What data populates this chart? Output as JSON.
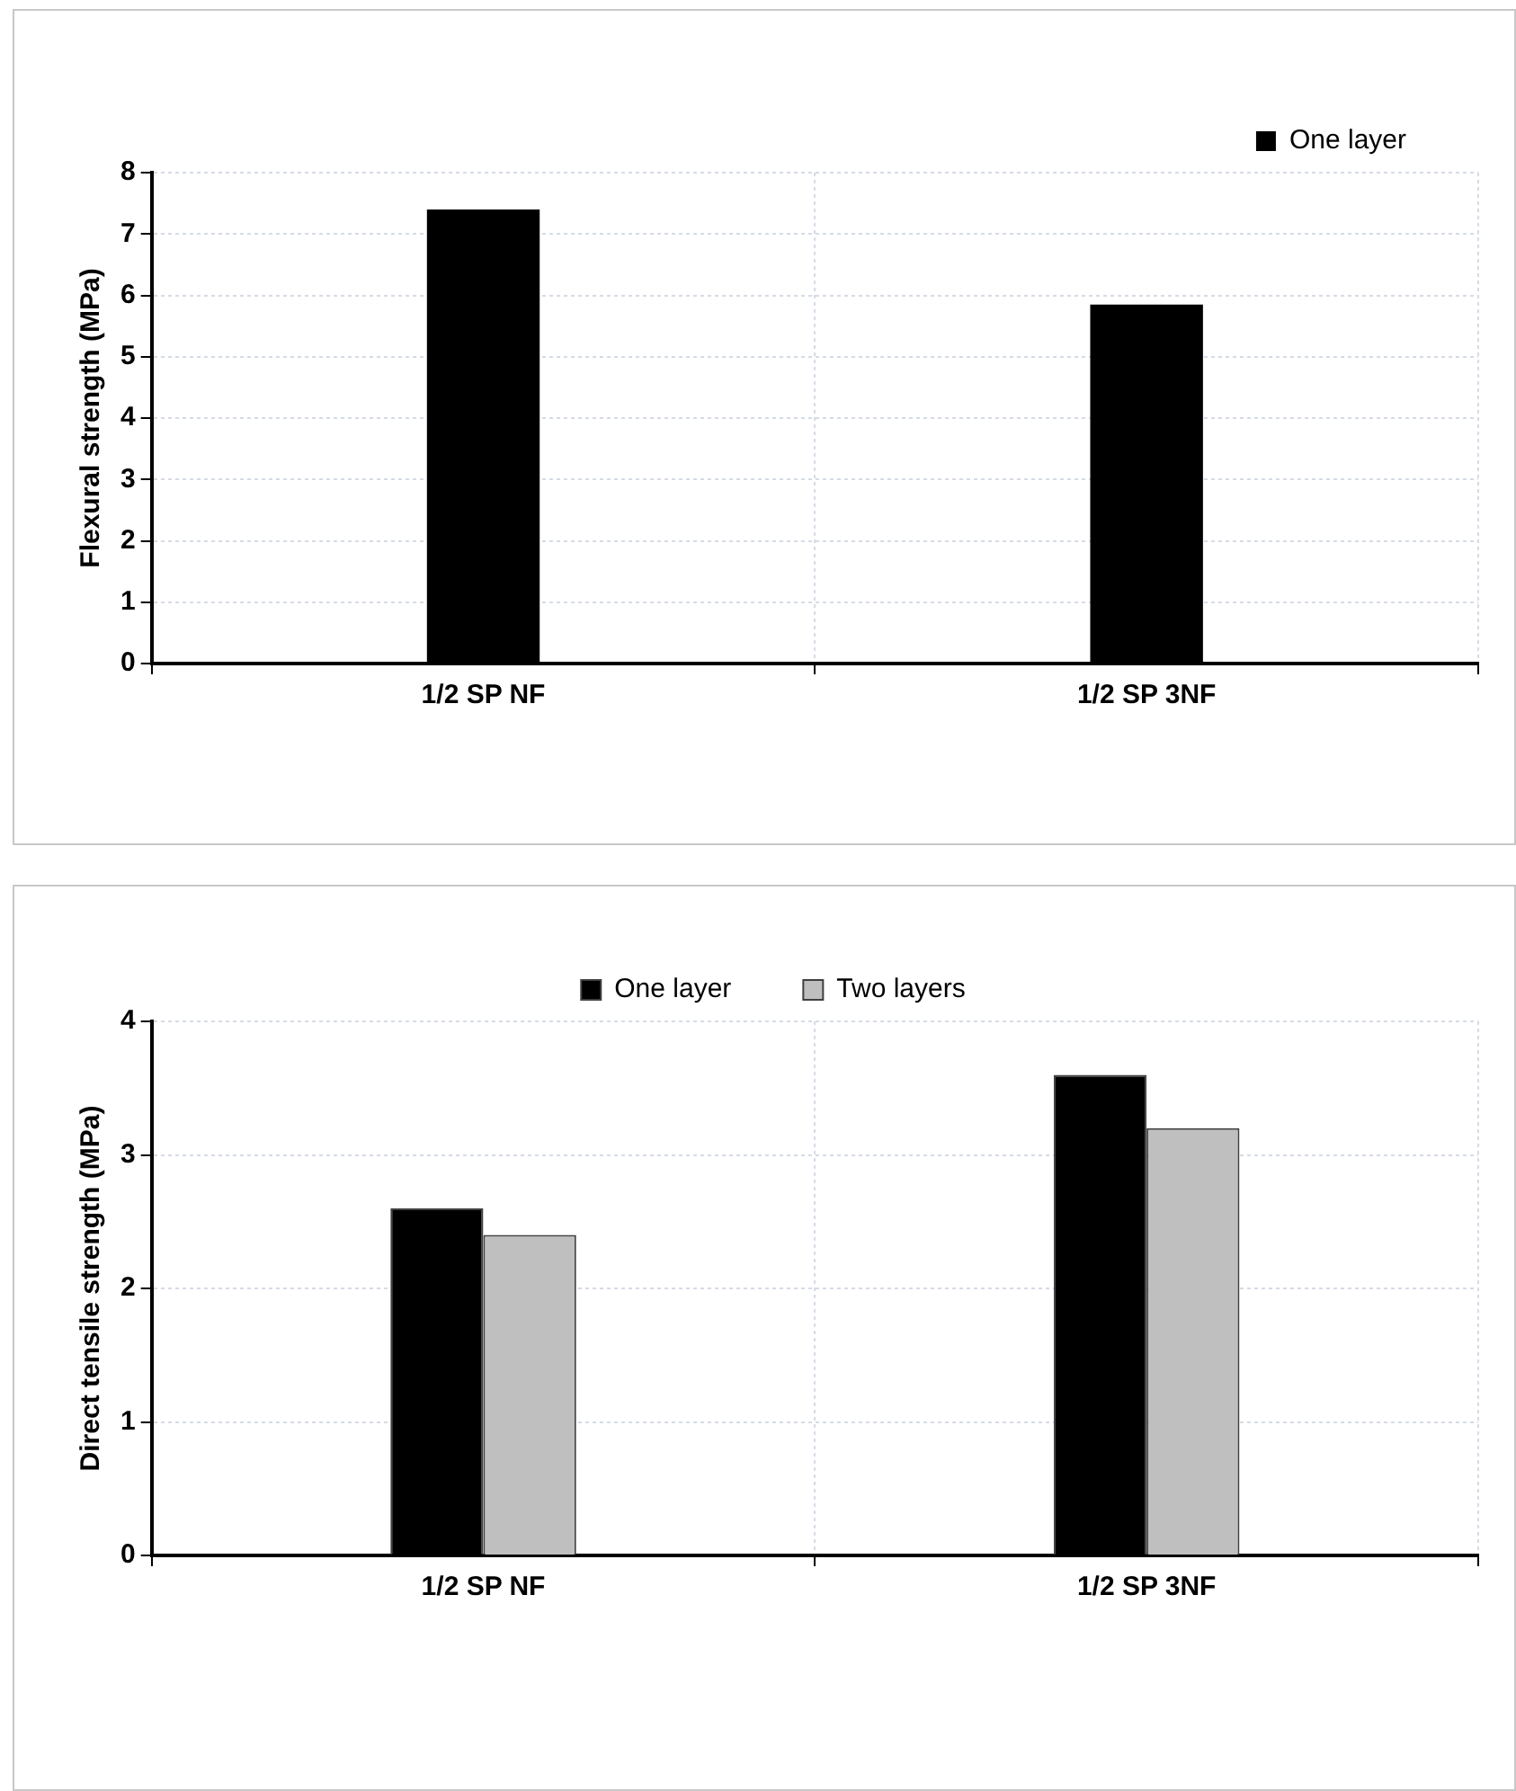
{
  "chart_data": [
    {
      "type": "bar",
      "categories": [
        "1/2 SP NF",
        "1/2 SP 3NF"
      ],
      "ylabel": "Flexural strength (MPa)",
      "ylim": [
        0,
        8
      ],
      "yticks": [
        0,
        1,
        2,
        3,
        4,
        5,
        6,
        7,
        8
      ],
      "grid": true,
      "legend": "top right",
      "series": [
        {
          "name": "One layer",
          "color": "#000000",
          "values": [
            7.4,
            5.85
          ]
        }
      ]
    },
    {
      "type": "bar",
      "categories": [
        "1/2 SP NF",
        "1/2 SP 3NF"
      ],
      "ylabel": "Direct tensile strength (MPa)",
      "ylim": [
        0,
        4
      ],
      "yticks": [
        0,
        1,
        2,
        3,
        4
      ],
      "grid": true,
      "legend": "top",
      "series": [
        {
          "name": "One layer",
          "color": "#000000",
          "values": [
            2.6,
            3.6
          ]
        },
        {
          "name": "Two layers",
          "color": "#bfbfbf",
          "values": [
            2.4,
            3.2
          ]
        }
      ]
    }
  ]
}
